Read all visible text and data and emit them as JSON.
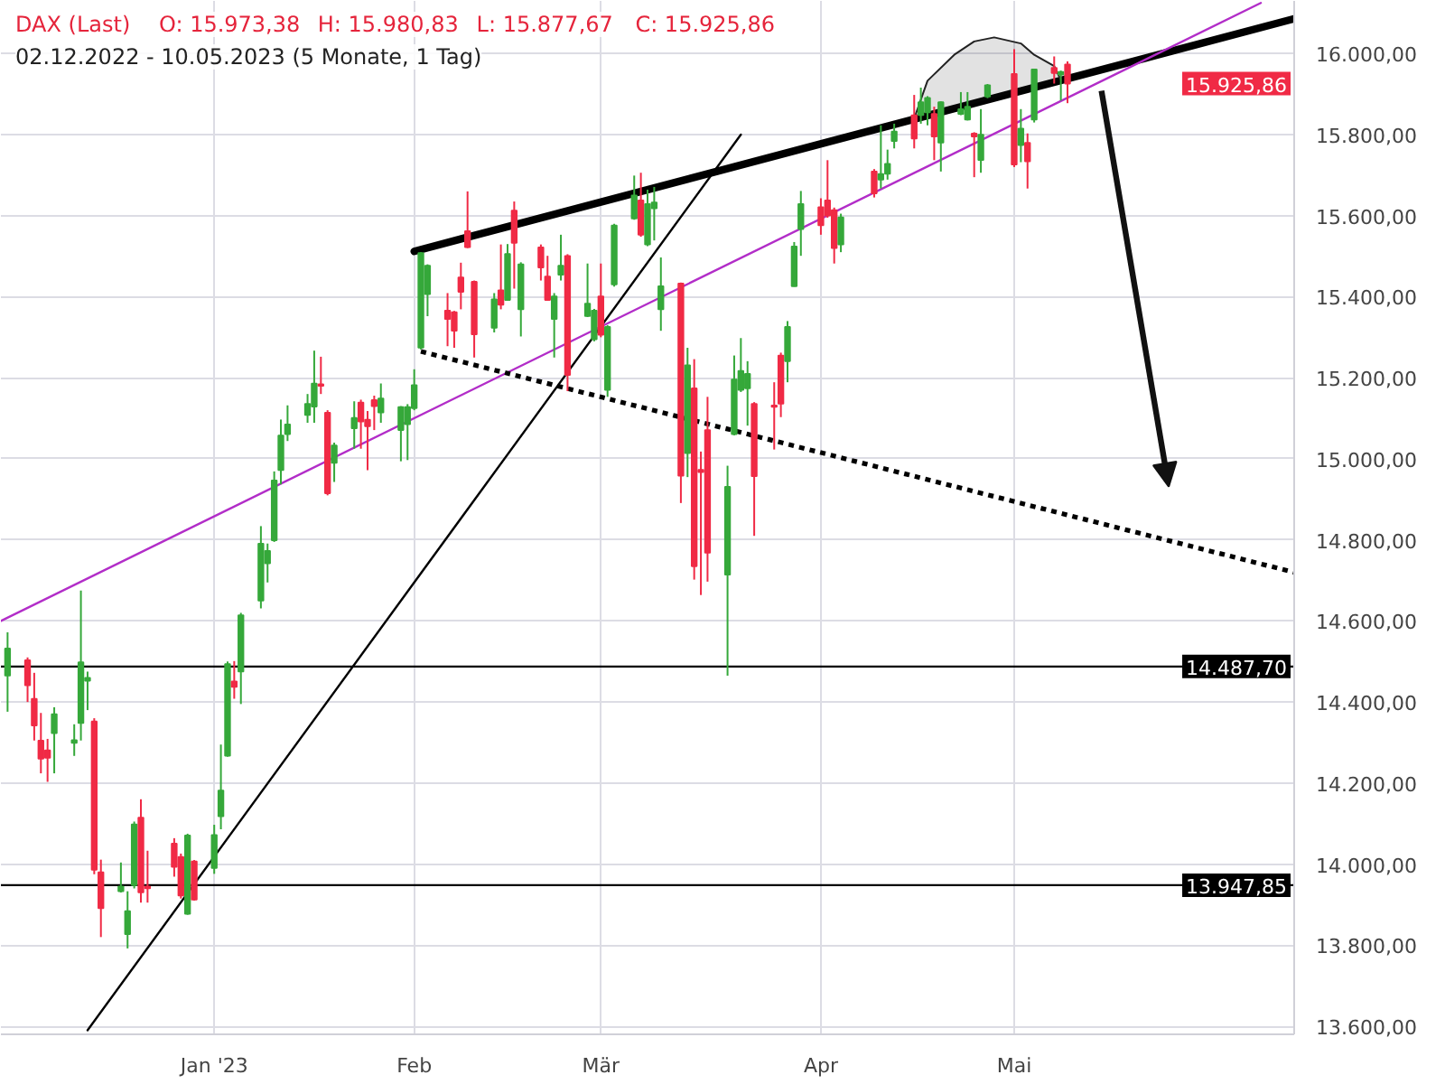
{
  "chart_data": {
    "type": "candlestick",
    "title": "DAX (Last)",
    "subtitle": "02.12.2022 - 10.05.2023 (5 Monate, 1 Tag)",
    "annotations": [
      "O: 15.973,38",
      "H: 15.980,83",
      "L: 15.877,67",
      "C: 15.925,86",
      "15.925,86"
    ],
    "x": [
      "2022-12-02",
      "2022-12-05",
      "2022-12-06",
      "2022-12-07",
      "2022-12-08",
      "2022-12-09",
      "2022-12-12",
      "2022-12-13",
      "2022-12-14",
      "2022-12-15",
      "2022-12-16",
      "2022-12-19",
      "2022-12-20",
      "2022-12-21",
      "2022-12-22",
      "2022-12-23",
      "2022-12-27",
      "2022-12-28",
      "2022-12-29",
      "2022-12-30",
      "2023-01-02",
      "2023-01-03",
      "2023-01-04",
      "2023-01-05",
      "2023-01-06",
      "2023-01-09",
      "2023-01-10",
      "2023-01-11",
      "2023-01-12",
      "2023-01-13",
      "2023-01-16",
      "2023-01-17",
      "2023-01-18",
      "2023-01-19",
      "2023-01-20",
      "2023-01-23",
      "2023-01-24",
      "2023-01-25",
      "2023-01-26",
      "2023-01-27",
      "2023-01-30",
      "2023-01-31",
      "2023-02-01",
      "2023-02-02",
      "2023-02-03",
      "2023-02-06",
      "2023-02-07",
      "2023-02-08",
      "2023-02-09",
      "2023-02-10",
      "2023-02-13",
      "2023-02-14",
      "2023-02-15",
      "2023-02-16",
      "2023-02-17",
      "2023-02-20",
      "2023-02-21",
      "2023-02-22",
      "2023-02-23",
      "2023-02-24",
      "2023-02-27",
      "2023-02-28",
      "2023-03-01",
      "2023-03-02",
      "2023-03-03",
      "2023-03-06",
      "2023-03-07",
      "2023-03-08",
      "2023-03-09",
      "2023-03-10",
      "2023-03-13",
      "2023-03-14",
      "2023-03-15",
      "2023-03-16",
      "2023-03-17",
      "2023-03-20",
      "2023-03-21",
      "2023-03-22",
      "2023-03-23",
      "2023-03-24",
      "2023-03-27",
      "2023-03-28",
      "2023-03-29",
      "2023-03-30",
      "2023-03-31",
      "2023-04-03",
      "2023-04-04",
      "2023-04-05",
      "2023-04-06",
      "2023-04-11",
      "2023-04-12",
      "2023-04-13",
      "2023-04-14",
      "2023-04-17",
      "2023-04-18",
      "2023-04-19",
      "2023-04-20",
      "2023-04-21",
      "2023-04-24",
      "2023-04-25",
      "2023-04-26",
      "2023-04-27",
      "2023-04-28",
      "2023-05-02",
      "2023-05-03",
      "2023-05-04",
      "2023-05-05",
      "2023-05-08",
      "2023-05-09",
      "2023-05-10"
    ],
    "ohlc": [
      [
        14465,
        14572,
        14376,
        14532
      ],
      [
        14503,
        14510,
        14400,
        14441
      ],
      [
        14408,
        14472,
        14305,
        14342
      ],
      [
        14305,
        14373,
        14224,
        14260
      ],
      [
        14281,
        14309,
        14203,
        14262
      ],
      [
        14323,
        14387,
        14224,
        14370
      ],
      [
        14299,
        14345,
        14267,
        14306
      ],
      [
        14348,
        14675,
        14305,
        14498
      ],
      [
        14452,
        14475,
        14380,
        14460
      ],
      [
        14352,
        14360,
        13975,
        13986
      ],
      [
        13980,
        14011,
        13820,
        13891
      ],
      [
        13933,
        14004,
        13930,
        13945
      ],
      [
        13827,
        13933,
        13792,
        13884
      ],
      [
        13948,
        14105,
        13940,
        14098
      ],
      [
        14115,
        14160,
        13905,
        13930
      ],
      [
        13945,
        14033,
        13905,
        13940
      ],
      [
        14051,
        14064,
        13969,
        13993
      ],
      [
        14018,
        14026,
        13915,
        13922
      ],
      [
        13877,
        14075,
        13875,
        14071
      ],
      [
        14007,
        14010,
        13910,
        13912
      ],
      [
        13990,
        14097,
        13976,
        14072
      ],
      [
        14118,
        14295,
        14086,
        14182
      ],
      [
        14267,
        14500,
        14265,
        14494
      ],
      [
        14451,
        14501,
        14408,
        14437
      ],
      [
        14475,
        14620,
        14395,
        14614
      ],
      [
        14650,
        14834,
        14631,
        14791
      ],
      [
        14742,
        14791,
        14695,
        14773
      ],
      [
        14799,
        14969,
        14795,
        14947
      ],
      [
        14972,
        15097,
        14937,
        15058
      ],
      [
        15061,
        15132,
        15044,
        15085
      ],
      [
        15108,
        15160,
        15089,
        15136
      ],
      [
        15129,
        15267,
        15089,
        15186
      ],
      [
        15184,
        15252,
        15160,
        15180
      ],
      [
        15114,
        15120,
        14910,
        14915
      ],
      [
        14990,
        15040,
        14943,
        15033
      ],
      [
        15075,
        15142,
        15025,
        15101
      ],
      [
        15139,
        15146,
        15025,
        15092
      ],
      [
        15097,
        15118,
        14972,
        15080
      ],
      [
        15145,
        15156,
        15071,
        15130
      ],
      [
        15114,
        15186,
        15089,
        15149
      ],
      [
        15071,
        15130,
        14994,
        15128
      ],
      [
        15085,
        15135,
        14997,
        15128
      ],
      [
        15125,
        15221,
        15120,
        15182
      ],
      [
        15274,
        15510,
        15270,
        15508
      ],
      [
        15406,
        15480,
        15352,
        15477
      ],
      [
        15366,
        15409,
        15278,
        15345
      ],
      [
        15362,
        15365,
        15274,
        15316
      ],
      [
        15448,
        15484,
        15369,
        15412
      ],
      [
        15562,
        15660,
        15520,
        15522
      ],
      [
        15437,
        15440,
        15250,
        15307
      ],
      [
        15323,
        15409,
        15312,
        15394
      ],
      [
        15416,
        15529,
        15369,
        15380
      ],
      [
        15392,
        15530,
        15390,
        15506
      ],
      [
        15613,
        15635,
        15420,
        15533
      ],
      [
        15369,
        15485,
        15302,
        15480
      ],
      [
        15522,
        15529,
        15440,
        15472
      ],
      [
        15450,
        15501,
        15390,
        15392
      ],
      [
        15345,
        15409,
        15250,
        15401
      ],
      [
        15454,
        15553,
        15440,
        15477
      ],
      [
        15501,
        15505,
        15167,
        15207
      ],
      [
        15352,
        15482,
        15350,
        15383
      ],
      [
        15295,
        15370,
        15290,
        15366
      ],
      [
        15401,
        15482,
        15300,
        15306
      ],
      [
        15170,
        15330,
        15153,
        15326
      ],
      [
        15430,
        15580,
        15425,
        15576
      ],
      [
        15593,
        15699,
        15590,
        15650
      ],
      [
        15638,
        15706,
        15548,
        15553
      ],
      [
        15529,
        15664,
        15525,
        15629
      ],
      [
        15618,
        15671,
        15539,
        15633
      ],
      [
        15369,
        15497,
        15316,
        15426
      ],
      [
        15433,
        15435,
        14891,
        14958
      ],
      [
        15014,
        15274,
        14955,
        15231
      ],
      [
        15174,
        15246,
        14702,
        14735
      ],
      [
        14973,
        15018,
        14664,
        14967
      ],
      [
        15071,
        15153,
        14697,
        14768
      ],
      [
        14714,
        14983,
        14465,
        14931
      ],
      [
        15061,
        15255,
        15058,
        15196
      ],
      [
        15170,
        15298,
        15165,
        15217
      ],
      [
        15174,
        15241,
        15082,
        15210
      ],
      [
        15136,
        15140,
        14810,
        14957
      ],
      [
        15132,
        15189,
        15023,
        15128
      ],
      [
        15255,
        15262,
        15103,
        15136
      ],
      [
        15241,
        15340,
        15189,
        15326
      ],
      [
        15426,
        15535,
        15425,
        15524
      ],
      [
        15567,
        15661,
        15501,
        15629
      ],
      [
        15621,
        15643,
        15553,
        15576
      ],
      [
        15638,
        15737,
        15595,
        15600
      ],
      [
        15614,
        15620,
        15482,
        15520
      ],
      [
        15529,
        15605,
        15510,
        15596
      ],
      [
        15709,
        15715,
        15645,
        15655
      ],
      [
        15689,
        15823,
        15667,
        15703
      ],
      [
        15703,
        15763,
        15689,
        15728
      ],
      [
        15784,
        15827,
        15766,
        15808
      ],
      [
        15848,
        15898,
        15766,
        15790
      ],
      [
        15848,
        15916,
        15827,
        15880
      ],
      [
        15855,
        15895,
        15823,
        15891
      ],
      [
        15851,
        15869,
        15737,
        15795
      ],
      [
        15780,
        15882,
        15709,
        15880
      ],
      [
        15851,
        15905,
        15848,
        15863
      ],
      [
        15837,
        15905,
        15835,
        15869
      ],
      [
        15803,
        15806,
        15695,
        15795
      ],
      [
        15737,
        15863,
        15706,
        15800
      ],
      [
        15894,
        15925,
        15890,
        15922
      ],
      [
        15950,
        16011,
        15720,
        15726
      ],
      [
        15774,
        15863,
        15732,
        15815
      ],
      [
        15780,
        15803,
        15667,
        15734
      ],
      [
        15837,
        15962,
        15830,
        15961
      ],
      [
        15965,
        15993,
        15926,
        15952
      ],
      [
        15948,
        15958,
        15884,
        15955
      ],
      [
        15973.38,
        15980.83,
        15877.67,
        15925.86
      ]
    ],
    "colors": [
      "#35a83a",
      "#f02a45",
      "#f02a45",
      "#f02a45",
      "#f02a45",
      "#35a83a",
      "#35a83a",
      "#35a83a",
      "#35a83a",
      "#f02a45",
      "#f02a45",
      "#35a83a",
      "#35a83a",
      "#35a83a",
      "#f02a45",
      "#f02a45",
      "#f02a45",
      "#f02a45",
      "#35a83a",
      "#f02a45",
      "#35a83a",
      "#35a83a",
      "#35a83a",
      "#f02a45",
      "#35a83a",
      "#35a83a",
      "#35a83a",
      "#35a83a",
      "#35a83a",
      "#35a83a",
      "#35a83a",
      "#35a83a",
      "#f02a45",
      "#f02a45",
      "#35a83a",
      "#35a83a",
      "#f02a45",
      "#f02a45",
      "#f02a45",
      "#35a83a",
      "#35a83a",
      "#35a83a",
      "#35a83a",
      "#35a83a",
      "#35a83a",
      "#f02a45",
      "#f02a45",
      "#f02a45",
      "#f02a45",
      "#f02a45",
      "#35a83a",
      "#f02a45",
      "#35a83a",
      "#f02a45",
      "#35a83a",
      "#f02a45",
      "#f02a45",
      "#35a83a",
      "#35a83a",
      "#f02a45",
      "#35a83a",
      "#35a83a",
      "#f02a45",
      "#35a83a",
      "#35a83a",
      "#35a83a",
      "#f02a45",
      "#35a83a",
      "#35a83a",
      "#35a83a",
      "#f02a45",
      "#35a83a",
      "#f02a45",
      "#f02a45",
      "#f02a45",
      "#35a83a",
      "#35a83a",
      "#35a83a",
      "#35a83a",
      "#f02a45",
      "#f02a45",
      "#f02a45",
      "#35a83a",
      "#35a83a",
      "#35a83a",
      "#f02a45",
      "#f02a45",
      "#f02a45",
      "#35a83a",
      "#f02a45",
      "#35a83a",
      "#35a83a",
      "#35a83a",
      "#f02a45",
      "#35a83a",
      "#35a83a",
      "#f02a45",
      "#35a83a",
      "#35a83a",
      "#35a83a",
      "#f02a45",
      "#35a83a",
      "#35a83a",
      "#f02a45",
      "#35a83a",
      "#f02a45",
      "#35a83a",
      "#f02a45",
      "#35a83a",
      "#f02a45"
    ],
    "series": [
      {
        "type": "line",
        "color": "#000000",
        "x": [
          "2023-02-01",
          "2023-06-13"
        ],
        "values": [
          15512,
          16086
        ],
        "line_style": "solid"
      },
      {
        "type": "line",
        "color": "#b22dc8",
        "x": [
          "2022-12-01",
          "2023-06-08"
        ],
        "values": [
          14600,
          16125
        ],
        "line_style": "solid"
      },
      {
        "type": "line",
        "color": "#000000",
        "x": [
          "2022-12-14",
          "2023-03-22"
        ],
        "values": [
          13590,
          15800
        ],
        "line_style": "solid"
      },
      {
        "type": "line",
        "color": "#000000",
        "x": [
          "2023-02-02",
          "2023-06-13"
        ],
        "values": [
          15265,
          14720
        ],
        "line_style": "dotted"
      },
      {
        "type": "line",
        "color": "#222222",
        "x": [
          "2023-04-17",
          "2023-04-19",
          "2023-04-23",
          "2023-04-26",
          "2023-04-29",
          "2023-05-03",
          "2023-05-05",
          "2023-05-08",
          "2023-05-09"
        ],
        "values": [
          15840,
          15933,
          15997,
          16030,
          16040,
          16025,
          15997,
          15969,
          15935
        ],
        "lower": [
          15838,
          15847,
          15864,
          15877,
          15890,
          15908,
          15916,
          15929,
          15934
        ],
        "upper": [
          15840,
          15933,
          15997,
          16030,
          16040,
          16025,
          15997,
          15969,
          15935
        ],
        "line_style": "solid"
      }
    ],
    "ref_lines": [
      {
        "axis": "y",
        "value": 14487.7,
        "label": "14.487,70",
        "color": "#000000"
      },
      {
        "axis": "y",
        "value": 13947.85,
        "label": "13.947,85",
        "color": "#000000"
      }
    ],
    "xlim": [
      "2022-12-01",
      "2023-06-13"
    ],
    "ylim": [
      13580,
      16130
    ],
    "xticks": [
      {
        "value": "2023-01-02",
        "label": "Jan '23"
      },
      {
        "value": "2023-02-01",
        "label": "Feb"
      },
      {
        "value": "2023-03-01",
        "label": "Mär"
      },
      {
        "value": "2023-04-03",
        "label": "Apr"
      },
      {
        "value": "2023-05-02",
        "label": "Mai"
      }
    ],
    "yticks": [
      {
        "value": 13600,
        "label": "13.600,00"
      },
      {
        "value": 13800,
        "label": "13.800,00"
      },
      {
        "value": 14000,
        "label": "14.000,00"
      },
      {
        "value": 14200,
        "label": "14.200,00"
      },
      {
        "value": 14400,
        "label": "14.400,00"
      },
      {
        "value": 14600,
        "label": "14.600,00"
      },
      {
        "value": 14800,
        "label": "14.800,00"
      },
      {
        "value": 15000,
        "label": "15.000,00"
      },
      {
        "value": 15200,
        "label": "15.200,00"
      },
      {
        "value": 15400,
        "label": "15.400,00"
      },
      {
        "value": 15600,
        "label": "15.600,00"
      },
      {
        "value": 15800,
        "label": "15.800,00"
      },
      {
        "value": 16000,
        "label": "16.000,00"
      }
    ],
    "grid": true
  }
}
